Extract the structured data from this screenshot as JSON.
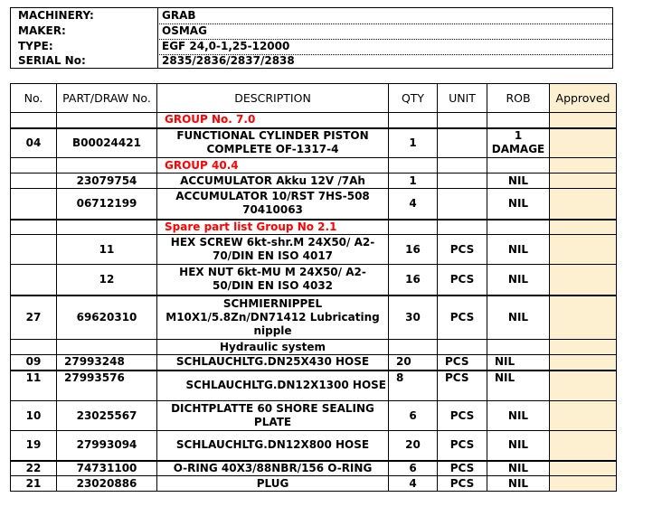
{
  "header": [
    {
      "label": "MACHINERY:",
      "value": "GRAB"
    },
    {
      "label": "MAKER:",
      "value": "OSMAG"
    },
    {
      "label": "TYPE:",
      "value": "EGF 24,0-1,25-12000"
    },
    {
      "label": "SERIAL No:",
      "value": "2835/2836/2837/2838"
    }
  ],
  "columns": [
    "No.",
    "PART/DRAW No.",
    "DESCRIPTION",
    "QTY",
    "UNIT",
    "ROB",
    "Approved"
  ],
  "colors": {
    "group_text": "#ff0000",
    "approved_bg": "#fdf0d0"
  },
  "rows": [
    {
      "group": "GROUP No. 7.0"
    },
    {
      "no": "04",
      "part": "B00024421",
      "desc": "FUNCTIONAL CYLINDER PISTON COMPLETE OF-1317-4",
      "qty": "1",
      "unit": "",
      "rob": "1 DAMAGE"
    },
    {
      "group": "GROUP 40.4"
    },
    {
      "no": "",
      "part": "23079754",
      "desc": "ACCUMULATOR Akku 12V /7Ah",
      "qty": "1",
      "unit": "",
      "rob": "NIL"
    },
    {
      "no": "",
      "part": "06712199",
      "desc": "ACCUMULATOR 10/RST 7HS-508 70410063",
      "qty": "4",
      "unit": "",
      "rob": "NIL"
    },
    {
      "group": "Spare part list Group No 2.1"
    },
    {
      "no": "",
      "part": "11",
      "desc": "HEX SCREW 6kt-shr.M 24X50/ A2-70/DIN EN ISO 4017",
      "qty": "16",
      "unit": "PCS",
      "rob": "NIL"
    },
    {
      "no": "",
      "part": "12",
      "desc": "HEX NUT 6kt-MU M 24X50/ A2-50/DIN EN ISO 4032",
      "qty": "16",
      "unit": "PCS",
      "rob": "NIL"
    },
    {
      "no": "27",
      "part": "69620310",
      "desc": "SCHMIERNIPPEL M10X1/5.8Zn/DN71412 Lubricating nipple",
      "qty": "30",
      "unit": "PCS",
      "rob": "NIL"
    },
    {
      "subheading": "Hydraulic system"
    },
    {
      "no": "09",
      "part": "27993248",
      "desc": "SCHLAUCHLTG.DN25X430 HOSE",
      "qty": "20",
      "unit": "PCS",
      "rob": "NIL"
    },
    {
      "no": "11",
      "part": "27993576",
      "desc": "SCHLAUCHLTG.DN12X1300 HOSE",
      "qty": "8",
      "unit": "PCS",
      "rob": "NIL"
    },
    {
      "no": "10",
      "part": "23025567",
      "desc": "DICHTPLATTE 60 SHORE SEALING PLATE",
      "qty": "6",
      "unit": "PCS",
      "rob": "NIL"
    },
    {
      "no": "19",
      "part": "27993094",
      "desc": "SCHLAUCHLTG.DN12X800 HOSE",
      "qty": "20",
      "unit": "PCS",
      "rob": "NIL"
    },
    {
      "no": "22",
      "part": "74731100",
      "desc": "O-RING 40X3/88NBR/156 O-RING",
      "qty": "6",
      "unit": "PCS",
      "rob": "NIL"
    },
    {
      "no": "21",
      "part": "23020886",
      "desc": "PLUG",
      "qty": "4",
      "unit": "PCS",
      "rob": "NIL"
    }
  ]
}
